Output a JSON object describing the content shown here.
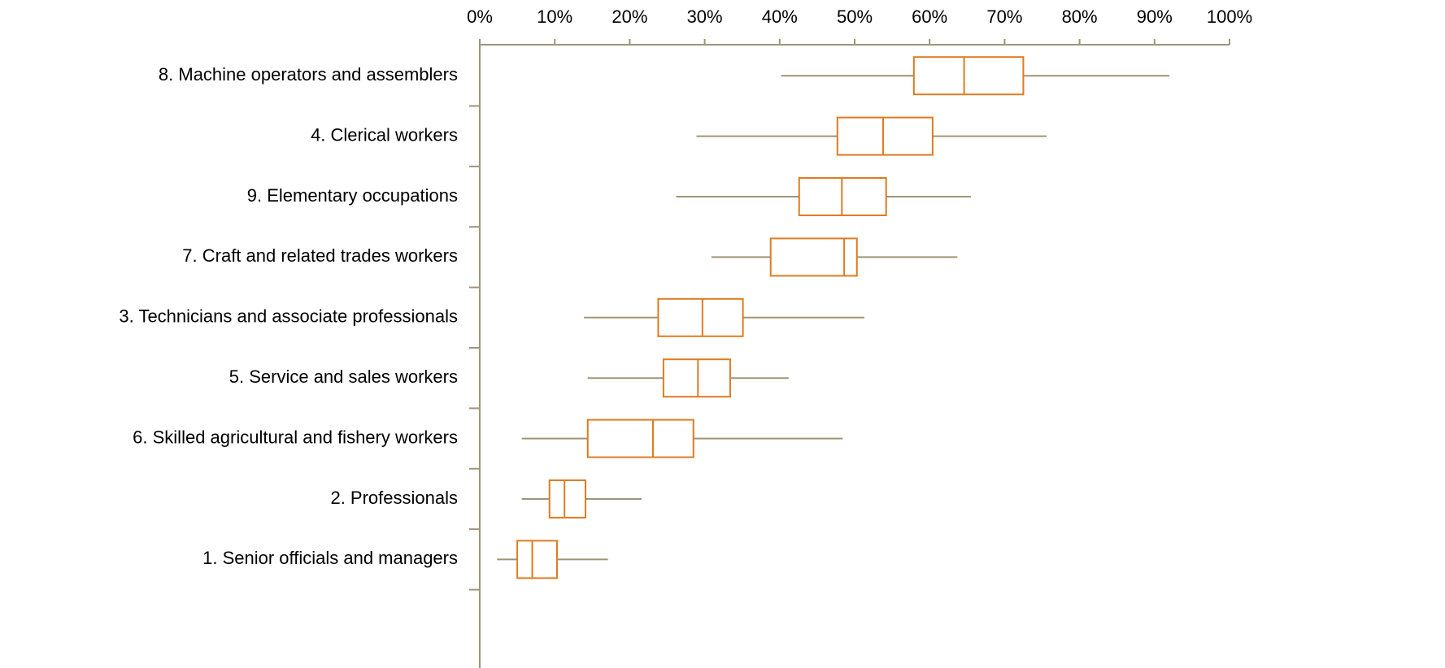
{
  "chart_data": {
    "type": "box",
    "categories": [
      "8. Machine operators and assemblers",
      "4. Clerical workers",
      "9. Elementary occupations",
      "7. Craft and related trades workers",
      "3. Technicians and associate professionals",
      "5. Service and sales workers",
      "6. Skilled agricultural and fishery workers",
      "2. Professionals",
      "1. Senior officials and managers"
    ],
    "min": [
      40.2,
      28.9,
      26.2,
      30.9,
      13.9,
      14.4,
      5.6,
      5.6,
      2.3
    ],
    "q1": [
      57.9,
      47.7,
      42.6,
      38.8,
      23.8,
      24.5,
      14.4,
      9.3,
      5.0
    ],
    "median": [
      64.6,
      53.8,
      48.3,
      48.6,
      29.7,
      29.1,
      23.1,
      11.3,
      7.0
    ],
    "q3": [
      72.5,
      60.4,
      54.2,
      50.3,
      35.1,
      33.4,
      28.5,
      14.1,
      10.3
    ],
    "max": [
      92.0,
      75.6,
      65.5,
      63.7,
      51.3,
      41.2,
      48.4,
      21.6,
      17.1
    ],
    "box_color": "#e07b20",
    "whisker_color": "#a09478",
    "axis_color": "#a09478",
    "xlim": [
      0,
      100
    ],
    "xticks": [
      {
        "value": 0,
        "label": "0%"
      },
      {
        "value": 10,
        "label": "10%"
      },
      {
        "value": 20,
        "label": "20%"
      },
      {
        "value": 30,
        "label": "30%"
      },
      {
        "value": 40,
        "label": "40%"
      },
      {
        "value": 50,
        "label": "50%"
      },
      {
        "value": 60,
        "label": "60%"
      },
      {
        "value": 70,
        "label": "70%"
      },
      {
        "value": 80,
        "label": "80%"
      },
      {
        "value": 90,
        "label": "90%"
      },
      {
        "value": 100,
        "label": "100%"
      }
    ]
  }
}
